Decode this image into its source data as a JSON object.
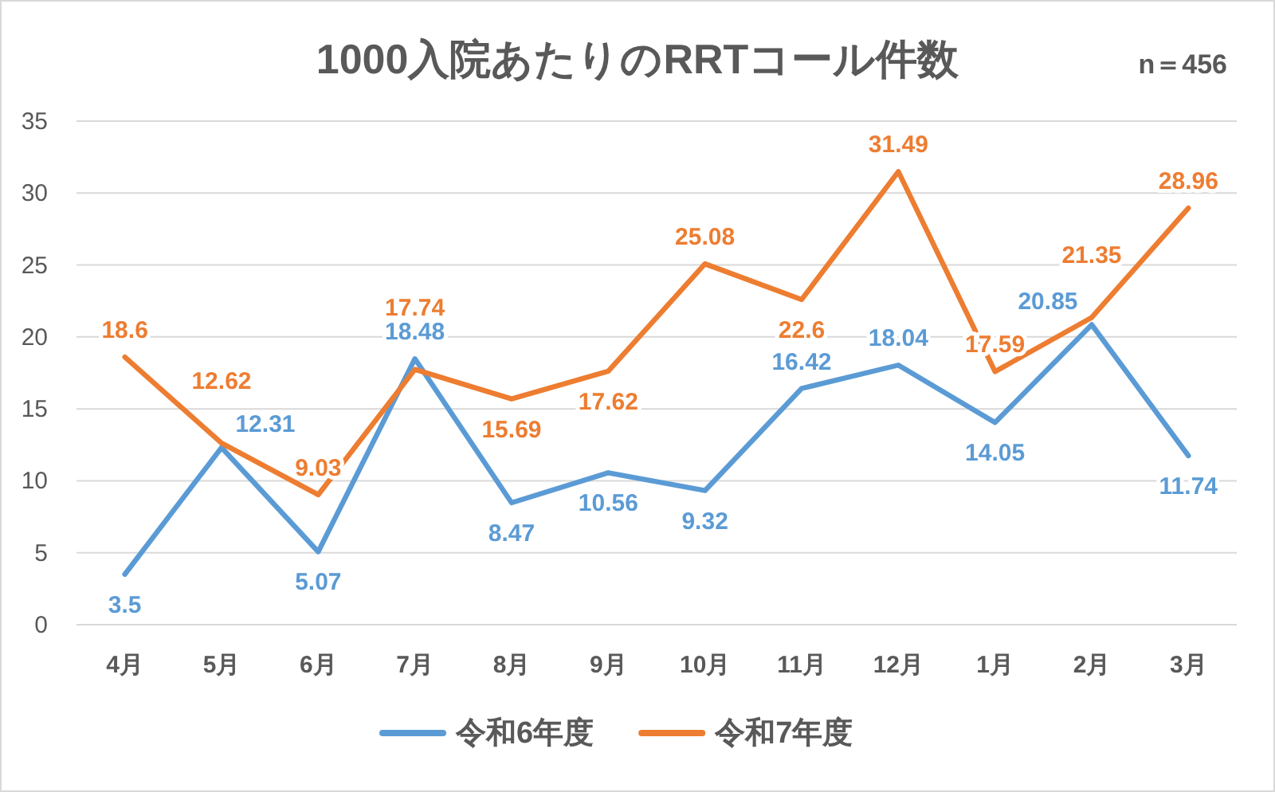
{
  "chart_data": {
    "type": "line",
    "title": "1000入院あたりのRRTコール件数",
    "annotations": [
      "n＝456"
    ],
    "categories": [
      "4月",
      "5月",
      "6月",
      "7月",
      "8月",
      "9月",
      "10月",
      "11月",
      "12月",
      "1月",
      "2月",
      "3月"
    ],
    "series": [
      {
        "name": "令和6年度",
        "color": "#5b9bd5",
        "values": [
          3.5,
          12.31,
          5.07,
          18.48,
          8.47,
          10.56,
          9.32,
          16.42,
          18.04,
          14.05,
          20.85,
          11.74
        ]
      },
      {
        "name": "令和7年度",
        "color": "#ed7d31",
        "values": [
          18.6,
          12.62,
          9.03,
          17.74,
          15.69,
          17.62,
          25.08,
          22.6,
          31.49,
          17.59,
          21.35,
          28.96
        ]
      }
    ],
    "ylim": [
      0,
      35
    ],
    "yticks": [
      0,
      5,
      10,
      15,
      20,
      25,
      30,
      35
    ],
    "grid": "y",
    "legend": "bottom",
    "data_labels": true,
    "marker": "none",
    "line_style": "solid"
  }
}
